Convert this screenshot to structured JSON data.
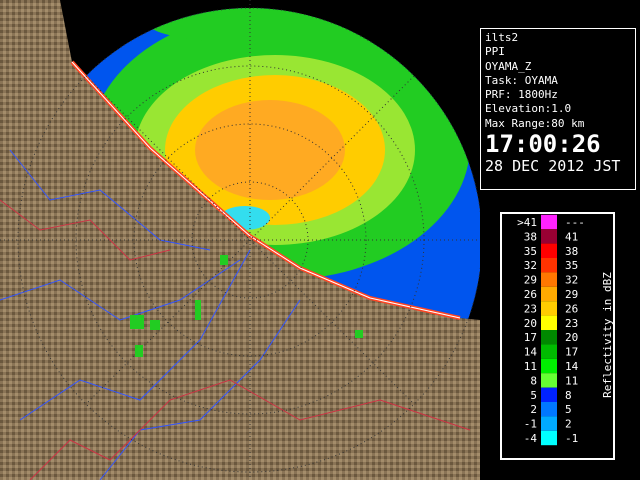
{
  "info": {
    "lines": [
      "ilts2",
      "PPI",
      "OYAMA_Z",
      "Task: OYAMA",
      "PRF: 1800Hz",
      "Elevation:1.0",
      "Max Range:80 km"
    ],
    "time": "17:00:26",
    "date": "28 DEC 2012 JST"
  },
  "legend": {
    "title": "Reflectivity in dBZ",
    "rows": [
      {
        "low": ">41",
        "high": "---",
        "color": "#ff22ff"
      },
      {
        "low": "38",
        "high": "41",
        "color": "#990033"
      },
      {
        "low": "35",
        "high": "38",
        "color": "#ff0000"
      },
      {
        "low": "32",
        "high": "35",
        "color": "#ff3300"
      },
      {
        "low": "29",
        "high": "32",
        "color": "#ff7700"
      },
      {
        "low": "26",
        "high": "29",
        "color": "#ffaa00"
      },
      {
        "low": "23",
        "high": "26",
        "color": "#ffcc00"
      },
      {
        "low": "20",
        "high": "23",
        "color": "#ffff00"
      },
      {
        "low": "17",
        "high": "20",
        "color": "#008800"
      },
      {
        "low": "14",
        "high": "17",
        "color": "#00bb00"
      },
      {
        "low": "11",
        "high": "14",
        "color": "#00ee00"
      },
      {
        "low": "8",
        "high": "11",
        "color": "#66ff33"
      },
      {
        "low": "5",
        "high": "8",
        "color": "#0022ff"
      },
      {
        "low": "2",
        "high": "5",
        "color": "#0077ff"
      },
      {
        "low": "-1",
        "high": "2",
        "color": "#00aaff"
      },
      {
        "low": "-4",
        "high": "-1",
        "color": "#00ffff"
      }
    ]
  }
}
